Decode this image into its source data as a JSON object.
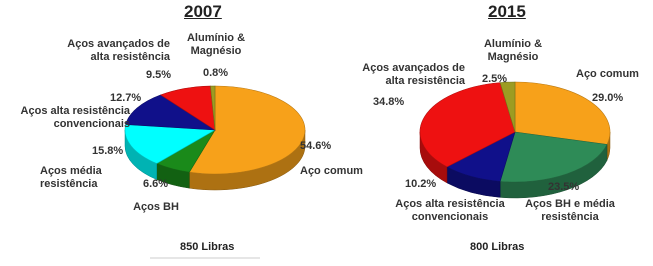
{
  "chart_data": [
    {
      "type": "pie",
      "title": "2007",
      "footer": "850 Libras",
      "categories": [
        "Aço comum",
        "Aços BH",
        "Aços média resistência",
        "Aços alta resistência convencionais",
        "Aços avançados de alta resistência",
        "Alumínio & Magnésio"
      ],
      "values": [
        54.6,
        6.6,
        15.8,
        12.7,
        9.5,
        0.8
      ],
      "value_labels": [
        "54.6%",
        "6.6%",
        "15.8%",
        "12.7%",
        "9.5%",
        "0.8%"
      ],
      "colors": [
        "#f7a11a",
        "#1a8a1a",
        "#00ffff",
        "#10108a",
        "#ee1111",
        "#9c9c22"
      ]
    },
    {
      "type": "pie",
      "title": "2015",
      "footer": "800 Libras",
      "categories": [
        "Aço comum",
        "Aços BH e média resistência",
        "Aços alta resistência convencionais",
        "Aços avançados de alta resistência",
        "Alumínio & Magnésio"
      ],
      "values": [
        29.0,
        23.5,
        10.2,
        34.8,
        2.5
      ],
      "value_labels": [
        "29.0%",
        "23.5%",
        "10.2%",
        "34.8%",
        "2.5%"
      ],
      "colors": [
        "#f7a11a",
        "#2e8b57",
        "#10108a",
        "#ee1111",
        "#9c9c22"
      ]
    }
  ]
}
